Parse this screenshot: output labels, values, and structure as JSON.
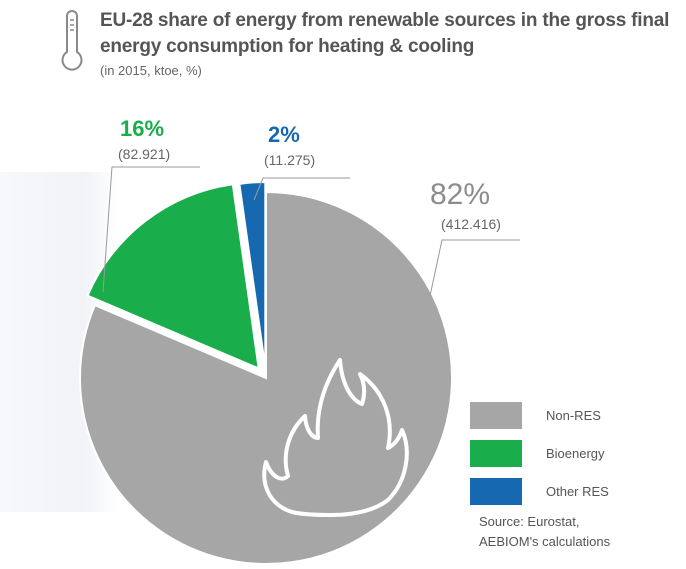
{
  "title": "EU-28 share of energy from renewable sources in the gross final energy consumption for heating & cooling",
  "subtitle": "(in 2015, ktoe, %)",
  "chart_data": {
    "type": "pie",
    "unit": "ktoe",
    "slices": [
      {
        "name": "Non-RES",
        "percent_label": "82%",
        "value_label": "(412.416)",
        "value": 412416,
        "color": "#a6a6a6"
      },
      {
        "name": "Bioenergy",
        "percent_label": "16%",
        "value_label": "(82.921)",
        "value": 82921,
        "color": "#19ad4b"
      },
      {
        "name": "Other RES",
        "percent_label": "2%",
        "value_label": "(11.275)",
        "value": 11275,
        "color": "#1669b0"
      }
    ],
    "legend_position": "bottom-right"
  },
  "legend": [
    "Non-RES",
    "Bioenergy",
    "Other RES"
  ],
  "source_lines": [
    "Source: Eurostat,",
    "AEBIOM's calculations"
  ],
  "icons": {
    "header": "thermometer-icon",
    "pie_overlay": "flame-icon"
  }
}
